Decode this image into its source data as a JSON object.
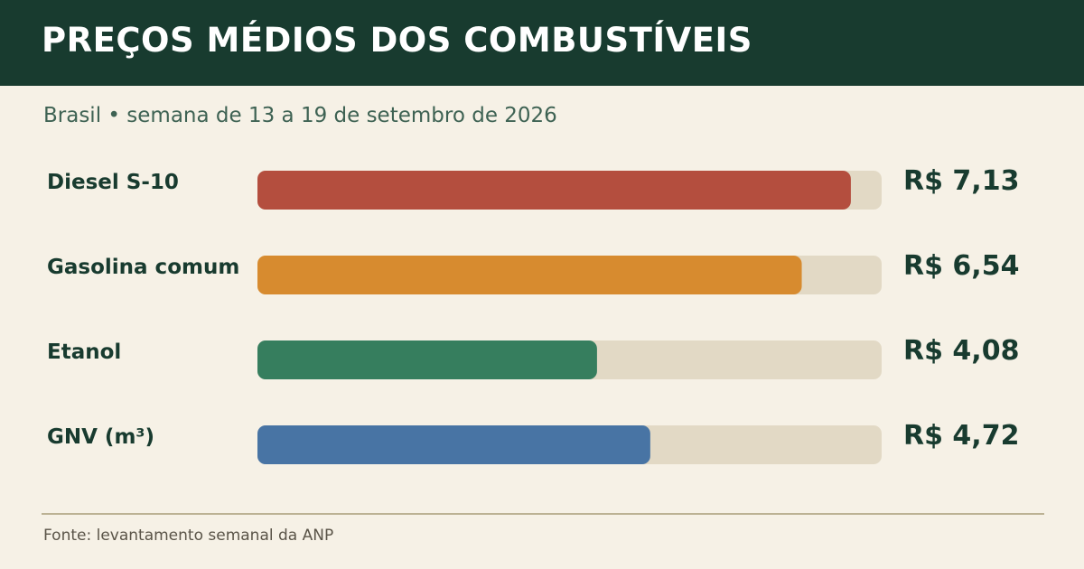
{
  "header": {
    "title": "PREÇOS MÉDIOS DOS COMBUSTÍVEIS",
    "subtitle": "Brasil • semana de 13 a 19 de setembro de 2026"
  },
  "footer": {
    "source": "Fonte: levantamento semanal da ANP"
  },
  "colors": {
    "header_bg": "#183b2f",
    "background": "#f6f1e6",
    "track": "#e2d9c5"
  },
  "chart_data": {
    "type": "bar",
    "orientation": "horizontal",
    "title": "PREÇOS MÉDIOS DOS COMBUSTÍVEIS",
    "subtitle": "Brasil • semana de 13 a 19 de setembro de 2026",
    "categories": [
      "Diesel S-10",
      "Gasolina comum",
      "Etanol",
      "GNV (m³)"
    ],
    "values": [
      7.13,
      6.54,
      4.08,
      4.72
    ],
    "value_labels": [
      "R$ 7,13",
      "R$ 6,54",
      "R$ 4,08",
      "R$ 4,72"
    ],
    "colors": [
      "#b44e3e",
      "#d78b2f",
      "#367e5e",
      "#4874a4"
    ],
    "xlim": [
      0,
      7.5
    ],
    "grid": false,
    "legend": false
  }
}
